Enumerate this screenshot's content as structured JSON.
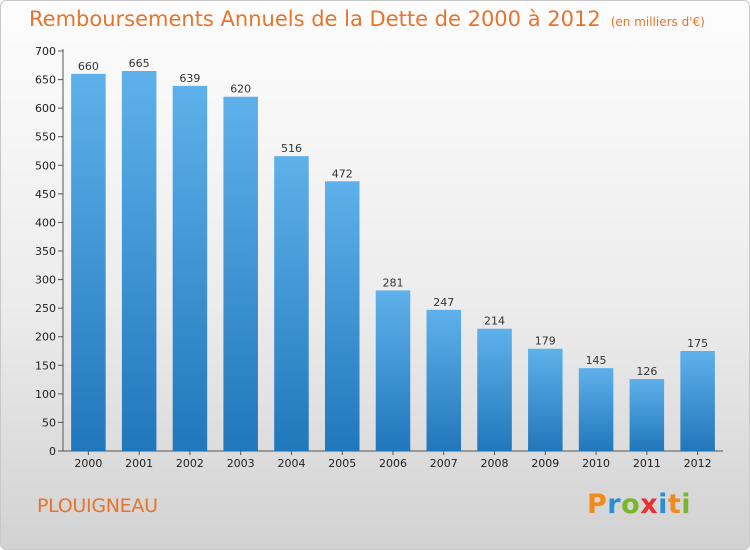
{
  "header": {
    "title": "Remboursements Annuels de la Dette de 2000 à 2012",
    "subtitle": "(en milliers d'€)"
  },
  "footer": {
    "town": "PLOUIGNEAU"
  },
  "logo": {
    "text": "Proxiti",
    "letters": [
      {
        "char": "P",
        "color": "#f08a1c"
      },
      {
        "char": "r",
        "color": "#2a8fd8"
      },
      {
        "char": "o",
        "color": "#78b828"
      },
      {
        "char": "x",
        "color": "#e83030"
      },
      {
        "char": "i",
        "color": "#2a8fd8"
      },
      {
        "char": "t",
        "color": "#f08a1c"
      },
      {
        "char": "i",
        "color": "#78b828"
      }
    ]
  },
  "colors": {
    "bar_top": "#5eb1ea",
    "bar_bottom": "#2177bb",
    "title": "#e8742c"
  },
  "chart_data": {
    "type": "bar",
    "title": "Remboursements Annuels de la Dette de 2000 à 2012",
    "categories": [
      "2000",
      "2001",
      "2002",
      "2003",
      "2004",
      "2005",
      "2006",
      "2007",
      "2008",
      "2009",
      "2010",
      "2011",
      "2012"
    ],
    "values": [
      660,
      665,
      639,
      620,
      516,
      472,
      281,
      247,
      214,
      179,
      145,
      126,
      175
    ],
    "ylim": [
      0,
      700
    ],
    "yticks": [
      0,
      50,
      100,
      150,
      200,
      250,
      300,
      350,
      400,
      450,
      500,
      550,
      600,
      650,
      700
    ],
    "grid": false,
    "xlabel": "",
    "ylabel": ""
  }
}
